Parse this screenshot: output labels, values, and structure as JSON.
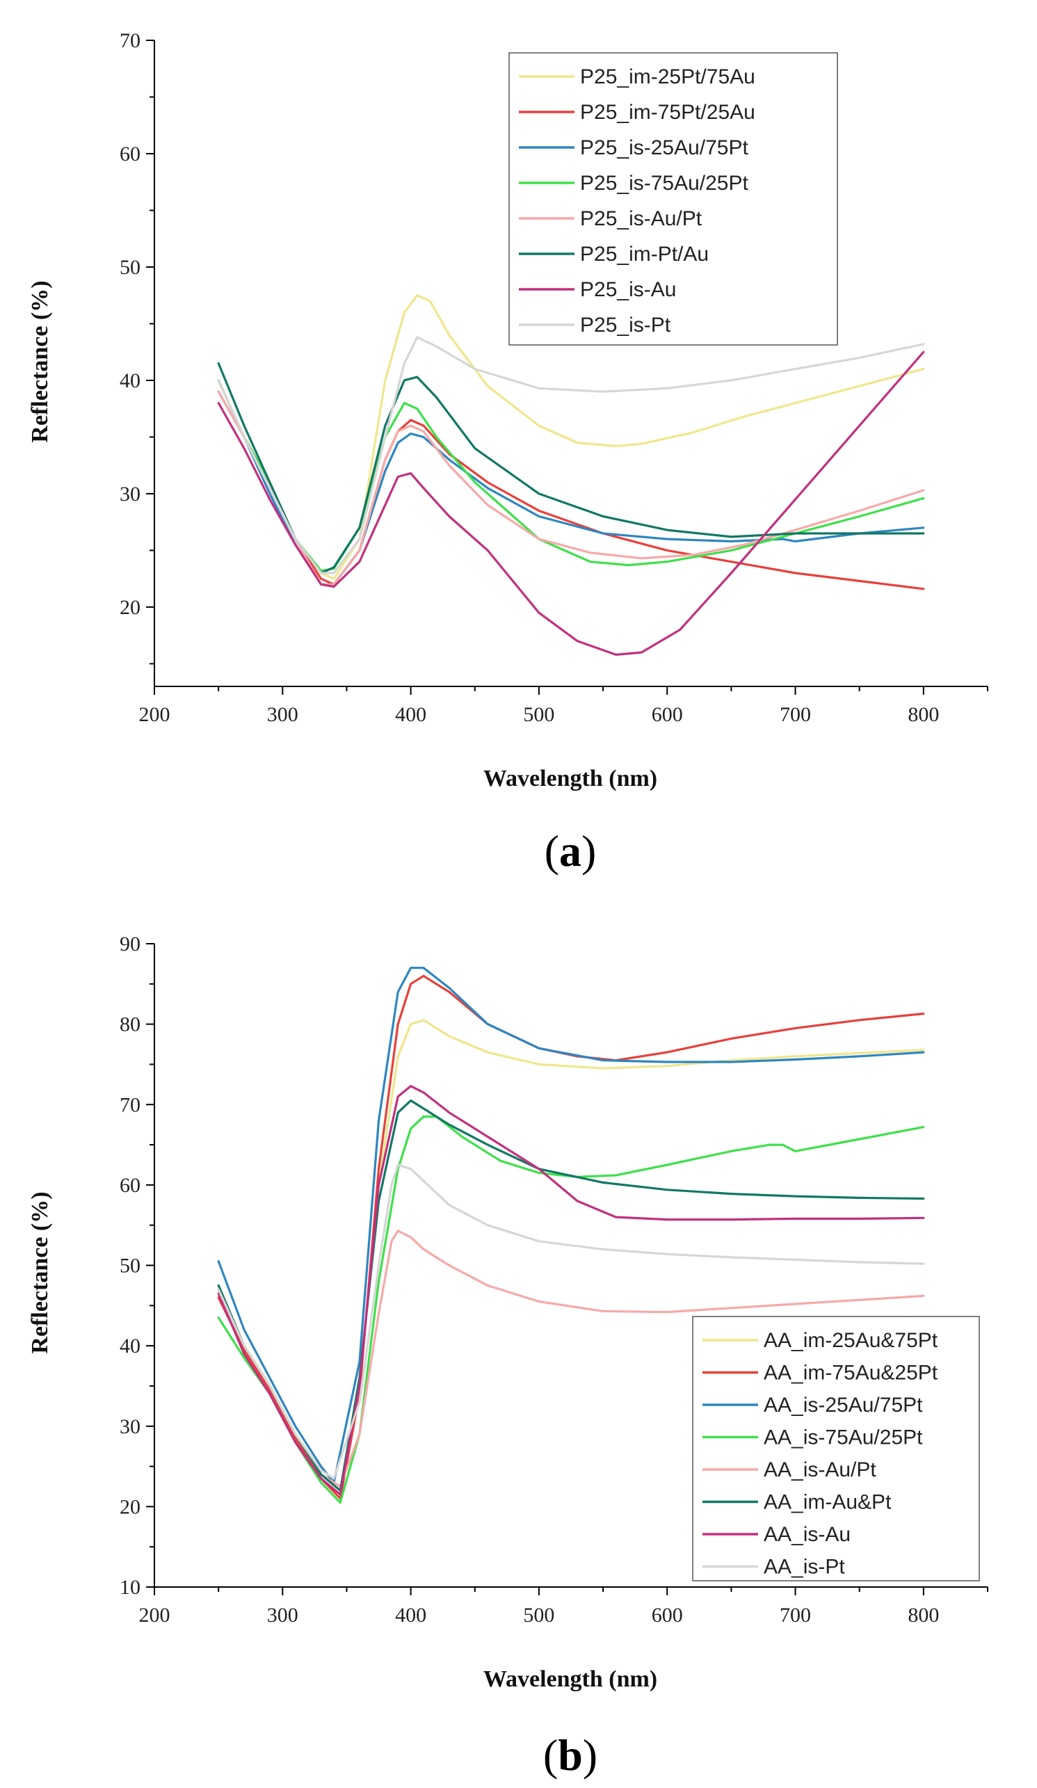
{
  "chart_data": [
    {
      "type": "line",
      "panel": "a",
      "xlabel": "Wavelength (nm)",
      "ylabel": "Reflectance (%)",
      "xlim": [
        200,
        850
      ],
      "ylim": [
        13,
        70
      ],
      "xticks": [
        200,
        300,
        400,
        500,
        600,
        700,
        800
      ],
      "yticks": [
        20,
        30,
        40,
        50,
        60,
        70
      ],
      "legend_position": "top-right",
      "series": [
        {
          "name": "P25_im-25Pt/75Au",
          "color": "#f0e68c",
          "x": [
            250,
            270,
            290,
            310,
            330,
            340,
            360,
            380,
            395,
            405,
            415,
            430,
            460,
            500,
            530,
            560,
            580,
            620,
            660,
            700,
            750,
            800
          ],
          "y": [
            40,
            35,
            31,
            26,
            23,
            22.5,
            26,
            40,
            46,
            47.5,
            47,
            44,
            39.5,
            36,
            34.5,
            34.2,
            34.4,
            35.4,
            36.8,
            38,
            39.5,
            41
          ]
        },
        {
          "name": "P25_im-75Pt/25Au",
          "color": "#e8403a",
          "x": [
            250,
            270,
            290,
            310,
            330,
            340,
            360,
            380,
            390,
            400,
            410,
            430,
            460,
            500,
            550,
            600,
            650,
            700,
            750,
            800
          ],
          "y": [
            40,
            35,
            31,
            26,
            22.5,
            22,
            25,
            33,
            35.5,
            36.5,
            36,
            33.5,
            31,
            28.5,
            26.5,
            25,
            24,
            23,
            22.3,
            21.6
          ]
        },
        {
          "name": "P25_is-25Au/75Pt",
          "color": "#2e86c1",
          "x": [
            250,
            270,
            290,
            310,
            330,
            340,
            360,
            380,
            390,
            400,
            410,
            430,
            460,
            500,
            550,
            600,
            650,
            690,
            700,
            750,
            800
          ],
          "y": [
            39,
            35,
            30,
            25.5,
            22,
            22,
            25,
            32,
            34.5,
            35.3,
            35,
            33,
            30.5,
            28,
            26.5,
            26,
            25.8,
            26,
            25.8,
            26.5,
            27
          ]
        },
        {
          "name": "P25_is-75Au/25Pt",
          "color": "#3ee04a",
          "x": [
            250,
            270,
            290,
            310,
            330,
            340,
            360,
            380,
            395,
            405,
            420,
            450,
            500,
            540,
            570,
            600,
            650,
            700,
            750,
            800
          ],
          "y": [
            40,
            35,
            31,
            26,
            23.2,
            23.4,
            27,
            35,
            38,
            37.5,
            35,
            31,
            26,
            24,
            23.7,
            24,
            25,
            26.5,
            28,
            29.6
          ]
        },
        {
          "name": "P25_is-Au/Pt",
          "color": "#f7a9a8",
          "x": [
            250,
            270,
            290,
            310,
            330,
            340,
            360,
            380,
            390,
            400,
            410,
            430,
            460,
            500,
            540,
            580,
            620,
            660,
            700,
            750,
            800
          ],
          "y": [
            39,
            35,
            30.5,
            26,
            22,
            22,
            25,
            33,
            35.5,
            36,
            35.5,
            32.5,
            29,
            26,
            24.8,
            24.3,
            24.6,
            25.5,
            26.8,
            28.5,
            30.3
          ]
        },
        {
          "name": "P25_im-Pt/Au",
          "color": "#117864",
          "x": [
            250,
            270,
            290,
            310,
            330,
            340,
            360,
            380,
            395,
            405,
            420,
            450,
            500,
            550,
            600,
            650,
            700,
            750,
            800
          ],
          "y": [
            41.5,
            36,
            31,
            26,
            23,
            23.5,
            27,
            36,
            40,
            40.3,
            38.5,
            34,
            30,
            28,
            26.8,
            26.2,
            26.5,
            26.5,
            26.5
          ]
        },
        {
          "name": "P25_is-Au",
          "color": "#c2307e",
          "x": [
            250,
            270,
            290,
            310,
            330,
            340,
            360,
            380,
            390,
            400,
            410,
            430,
            460,
            500,
            530,
            560,
            580,
            610,
            650,
            700,
            750,
            800
          ],
          "y": [
            38,
            34,
            29.5,
            25.5,
            22,
            21.8,
            24,
            29,
            31.5,
            31.8,
            30.5,
            28,
            25,
            19.5,
            17,
            15.8,
            16,
            18,
            23,
            29.5,
            36,
            42.5
          ]
        },
        {
          "name": "P25_is-Pt",
          "color": "#d6d6d6",
          "x": [
            250,
            270,
            290,
            310,
            330,
            340,
            360,
            380,
            395,
            405,
            420,
            450,
            500,
            550,
            600,
            650,
            700,
            750,
            800
          ],
          "y": [
            40,
            35,
            30.5,
            26,
            23,
            23,
            26,
            35,
            41.5,
            43.8,
            43,
            41,
            39.3,
            39,
            39.3,
            40,
            41,
            42,
            43.2
          ]
        }
      ]
    },
    {
      "type": "line",
      "panel": "b",
      "xlabel": "Wavelength (nm)",
      "ylabel": "Reflectance (%)",
      "xlim": [
        200,
        850
      ],
      "ylim": [
        10,
        90
      ],
      "xticks": [
        200,
        300,
        400,
        500,
        600,
        700,
        800
      ],
      "yticks": [
        10,
        20,
        30,
        40,
        50,
        60,
        70,
        80,
        90
      ],
      "legend_position": "bottom-right",
      "series": [
        {
          "name": "AA_im-25Au&75Pt",
          "color": "#f0e68c",
          "x": [
            250,
            270,
            290,
            310,
            330,
            345,
            360,
            375,
            390,
            400,
            410,
            430,
            460,
            500,
            550,
            600,
            650,
            700,
            750,
            800
          ],
          "y": [
            47,
            40,
            35,
            29,
            24,
            22,
            35,
            60,
            76,
            80,
            80.5,
            78.5,
            76.5,
            75,
            74.5,
            74.8,
            75.5,
            76,
            76.4,
            76.8
          ]
        },
        {
          "name": "AA_im-75Au&25Pt",
          "color": "#e8403a",
          "x": [
            250,
            270,
            290,
            310,
            330,
            345,
            360,
            375,
            390,
            400,
            410,
            430,
            460,
            500,
            530,
            560,
            600,
            650,
            700,
            750,
            800
          ],
          "y": [
            46,
            39.5,
            34.5,
            28.5,
            23.5,
            21,
            34,
            62,
            80,
            85,
            86,
            84,
            80,
            77,
            76,
            75.5,
            76.5,
            78.2,
            79.5,
            80.5,
            81.3
          ]
        },
        {
          "name": "AA_is-25Au/75Pt",
          "color": "#2e86c1",
          "x": [
            250,
            270,
            290,
            310,
            330,
            340,
            360,
            375,
            390,
            400,
            410,
            430,
            460,
            500,
            550,
            600,
            650,
            700,
            750,
            800
          ],
          "y": [
            50.5,
            42,
            36,
            30,
            25,
            23,
            38,
            68,
            84,
            87,
            87,
            84.5,
            80,
            77,
            75.5,
            75.3,
            75.3,
            75.6,
            76,
            76.5
          ]
        },
        {
          "name": "AA_is-75Au/25Pt",
          "color": "#3ee04a",
          "x": [
            250,
            270,
            290,
            310,
            330,
            345,
            360,
            375,
            390,
            400,
            410,
            420,
            440,
            470,
            500,
            530,
            560,
            600,
            650,
            680,
            690,
            700,
            750,
            800
          ],
          "y": [
            43.5,
            38.5,
            34,
            28,
            23,
            20.5,
            29,
            48,
            62,
            67,
            68.5,
            68.5,
            66,
            63,
            61.5,
            61,
            61.2,
            62.5,
            64.2,
            65,
            65,
            64.2,
            65.7,
            67.2
          ]
        },
        {
          "name": "AA_is-Au/Pt",
          "color": "#f7a9a8",
          "x": [
            250,
            270,
            290,
            310,
            330,
            345,
            360,
            375,
            385,
            390,
            400,
            410,
            430,
            460,
            500,
            550,
            600,
            650,
            700,
            750,
            800
          ],
          "y": [
            47,
            40,
            35,
            29,
            24,
            22.5,
            29,
            44,
            53,
            54.3,
            53.5,
            52,
            50,
            47.5,
            45.5,
            44.3,
            44.2,
            44.7,
            45.2,
            45.7,
            46.2
          ]
        },
        {
          "name": "AA_im-Au&Pt",
          "color": "#117864",
          "x": [
            250,
            270,
            290,
            310,
            330,
            345,
            360,
            375,
            390,
            400,
            410,
            430,
            460,
            500,
            550,
            600,
            650,
            700,
            750,
            800
          ],
          "y": [
            47.5,
            40,
            35,
            29,
            24,
            22,
            36,
            58,
            69,
            70.5,
            69.5,
            67.5,
            65,
            62,
            60.3,
            59.4,
            58.9,
            58.6,
            58.4,
            58.3
          ]
        },
        {
          "name": "AA_is-Au",
          "color": "#c2307e",
          "x": [
            250,
            270,
            290,
            310,
            330,
            345,
            360,
            375,
            390,
            400,
            410,
            430,
            460,
            500,
            530,
            560,
            600,
            650,
            700,
            750,
            800
          ],
          "y": [
            46.5,
            39,
            34,
            28,
            23.5,
            21.5,
            35,
            60,
            71,
            72.3,
            71.5,
            69,
            66,
            62,
            58,
            56,
            55.7,
            55.7,
            55.8,
            55.8,
            55.9
          ]
        },
        {
          "name": "AA_is-Pt",
          "color": "#d6d6d6",
          "x": [
            250,
            270,
            290,
            310,
            330,
            340,
            360,
            375,
            385,
            390,
            400,
            410,
            430,
            460,
            500,
            550,
            600,
            650,
            700,
            750,
            800
          ],
          "y": [
            47,
            40,
            35,
            29,
            24.5,
            23.5,
            33,
            50,
            60,
            62.5,
            62,
            60.5,
            57.5,
            55,
            53,
            52,
            51.4,
            51,
            50.7,
            50.4,
            50.2
          ]
        }
      ]
    }
  ],
  "captions": [
    "a",
    "b"
  ]
}
